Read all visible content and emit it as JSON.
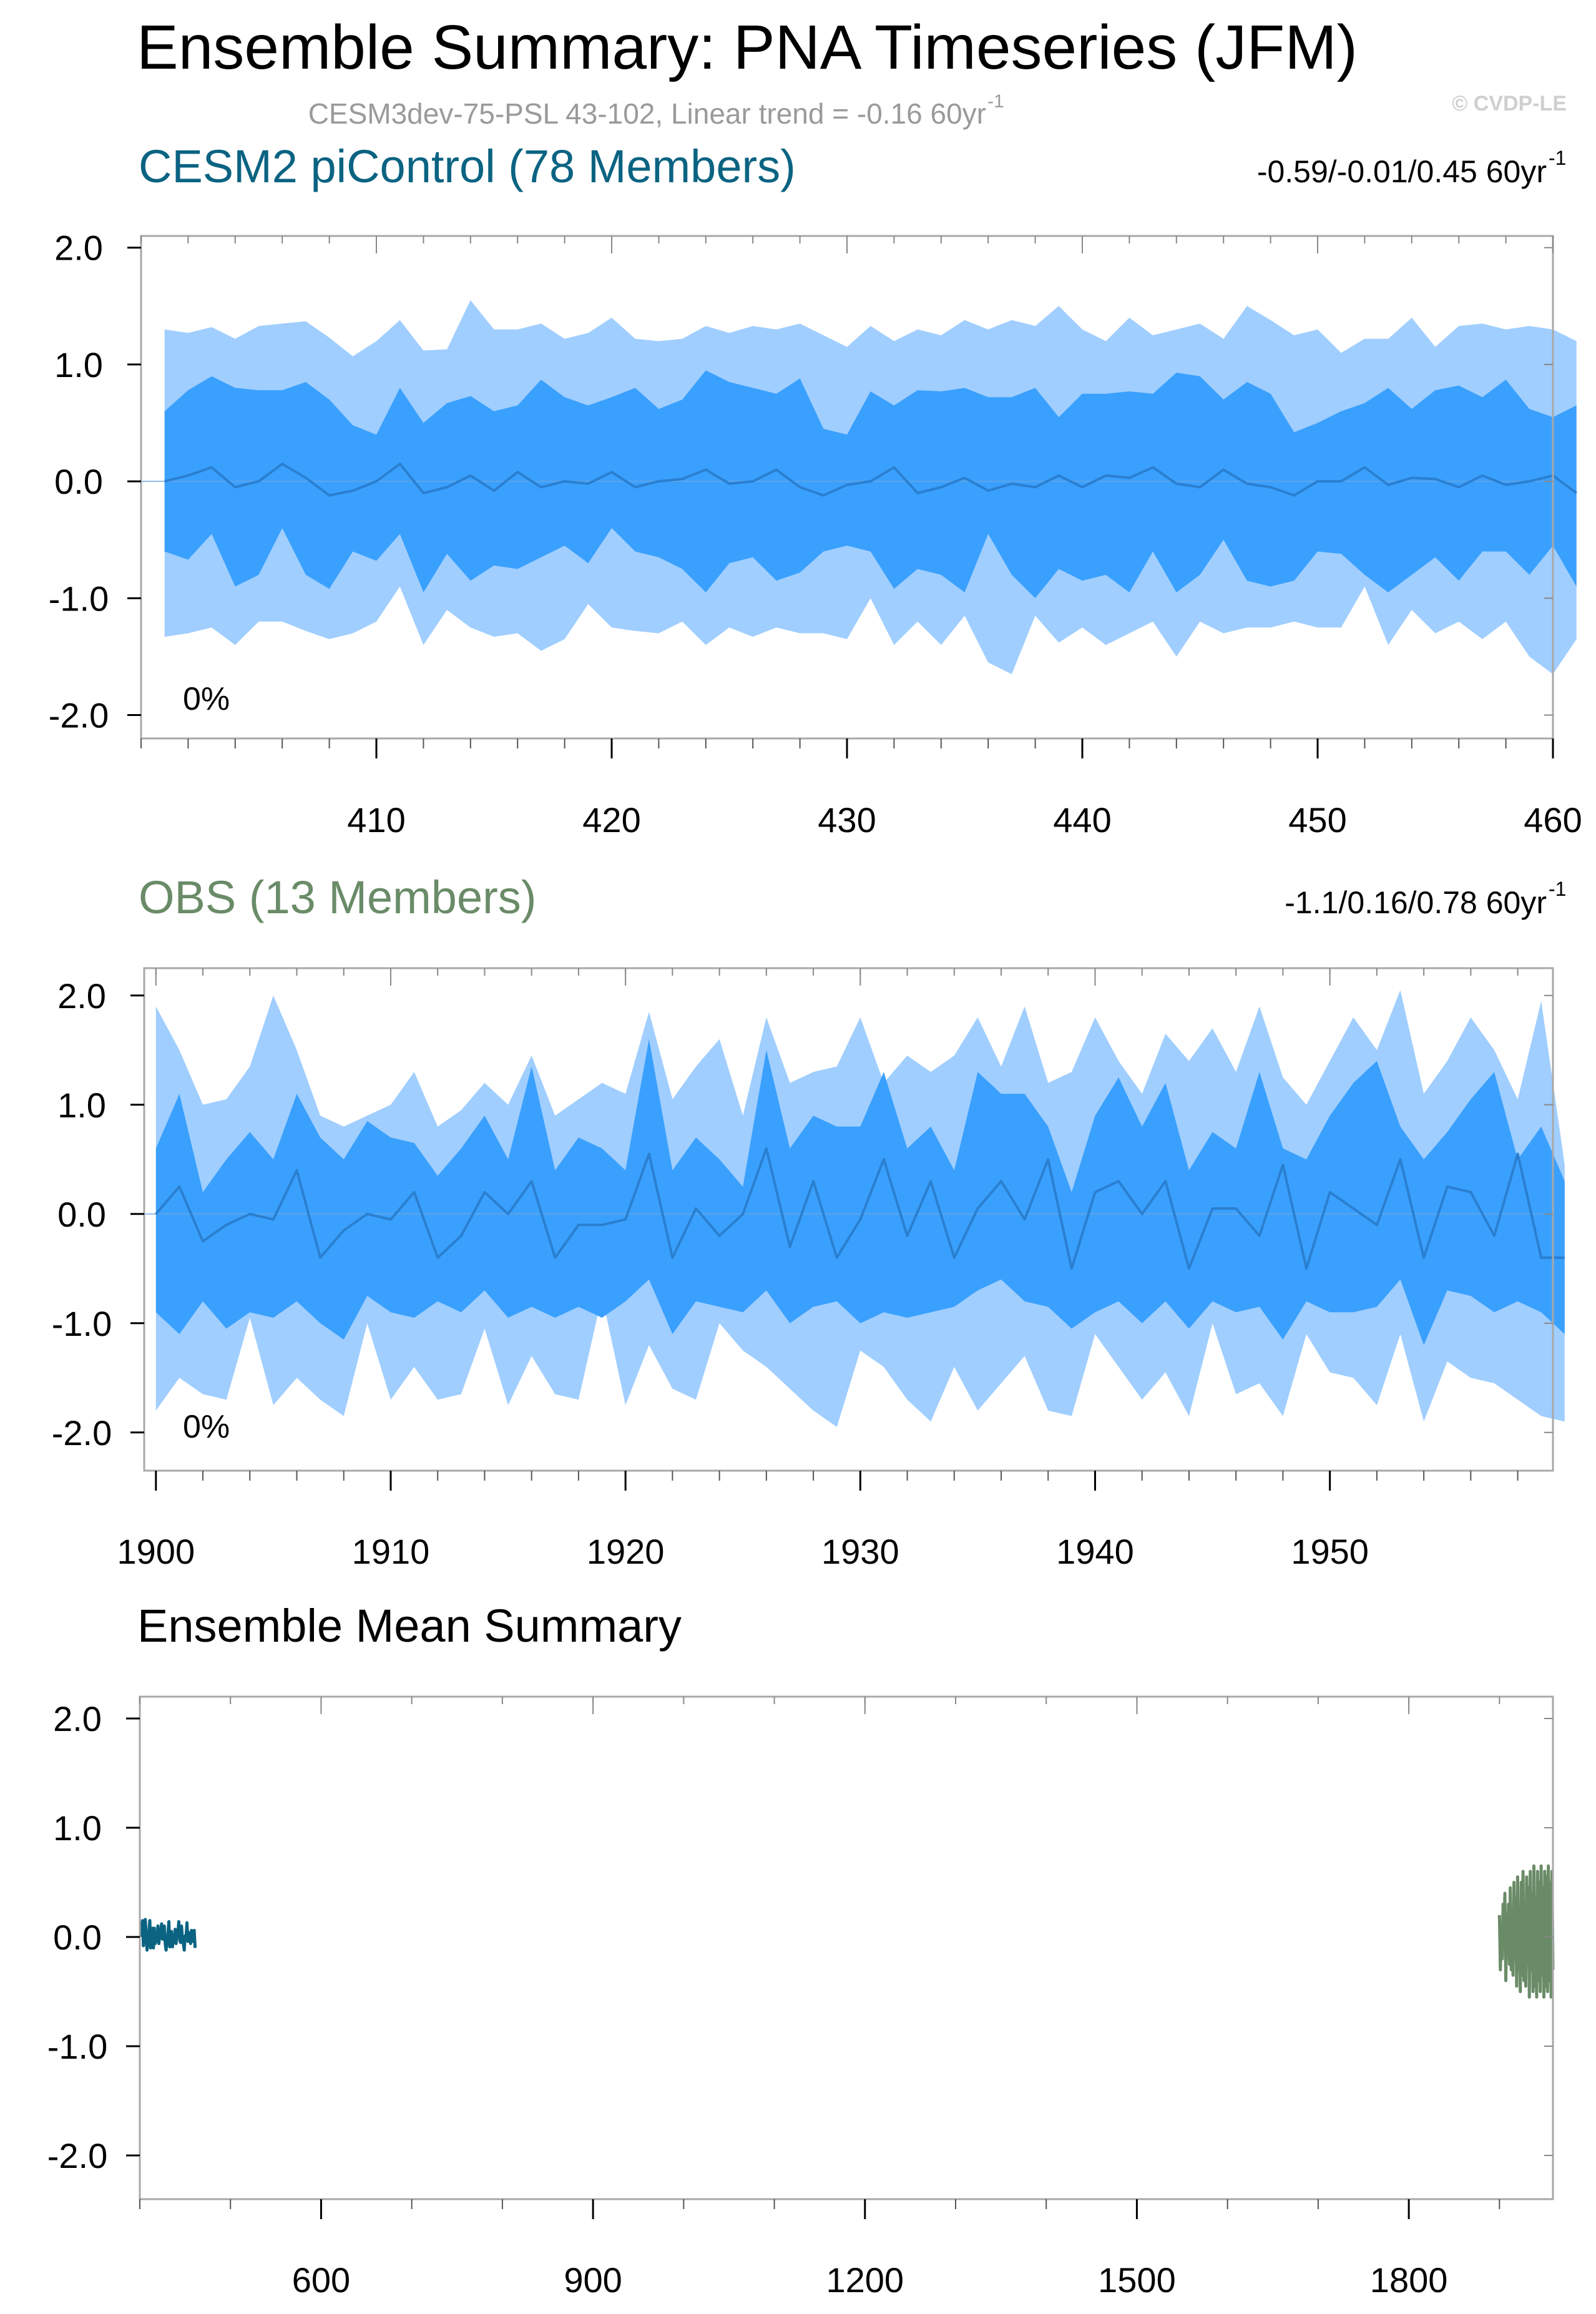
{
  "title": "Ensemble Summary: PNA Timeseries (JFM)",
  "subtitle": "CESM3dev-75-PSL 43-102, Linear trend = -0.16 60yr",
  "subtitle_sup": "-1",
  "copyright": "© CVDP-LE",
  "colors": {
    "band_outer": "#a0ceff",
    "band_inner": "#3aa0fd",
    "mean_line": "#2a7fd0",
    "cesm_title": "#0b6382",
    "obs_title": "#6a8b67",
    "frame": "#a8a8a8"
  },
  "chart_data": [
    {
      "type": "area",
      "title": "CESM2 piControl (78 Members)",
      "range_text": "-0.59/-0.01/0.45 60yr",
      "range_sup": "-1",
      "percent_label": "0%",
      "xlim": [
        400,
        460
      ],
      "ylim": [
        -2.2,
        2.1
      ],
      "x_start": 401,
      "x_ticks": [
        410,
        420,
        430,
        440,
        450,
        460
      ],
      "x_tick_labels": [
        "410",
        "420",
        "430",
        "440",
        "450",
        "460"
      ],
      "y_ticks": [
        2.0,
        1.0,
        0.0,
        -1.0,
        -2.0
      ],
      "y_tick_labels": [
        "2.0",
        "1.0",
        "0.0",
        "-1.0",
        "-2.0"
      ],
      "series": [
        {
          "role": "upper_outer",
          "values": [
            1.3,
            1.27,
            1.32,
            1.22,
            1.33,
            1.35,
            1.37,
            1.23,
            1.07,
            1.2,
            1.38,
            1.12,
            1.13,
            1.55,
            1.3,
            1.3,
            1.35,
            1.22,
            1.27,
            1.4,
            1.22,
            1.2,
            1.22,
            1.33,
            1.27,
            1.33,
            1.3,
            1.35,
            1.25,
            1.15,
            1.33,
            1.2,
            1.3,
            1.25,
            1.38,
            1.3,
            1.38,
            1.33,
            1.5,
            1.3,
            1.2,
            1.4,
            1.25,
            1.3,
            1.35,
            1.22,
            1.5,
            1.38,
            1.25,
            1.3,
            1.1,
            1.22,
            1.22,
            1.4,
            1.15,
            1.33,
            1.35,
            1.3,
            1.33,
            1.3,
            1.2
          ]
        },
        {
          "role": "upper_inner",
          "values": [
            0.6,
            0.78,
            0.9,
            0.8,
            0.78,
            0.78,
            0.85,
            0.7,
            0.48,
            0.4,
            0.8,
            0.5,
            0.67,
            0.73,
            0.6,
            0.65,
            0.87,
            0.72,
            0.65,
            0.72,
            0.8,
            0.62,
            0.7,
            0.95,
            0.85,
            0.8,
            0.75,
            0.88,
            0.45,
            0.4,
            0.77,
            0.65,
            0.78,
            0.77,
            0.8,
            0.72,
            0.72,
            0.8,
            0.55,
            0.75,
            0.75,
            0.77,
            0.75,
            0.93,
            0.9,
            0.7,
            0.85,
            0.75,
            0.42,
            0.5,
            0.6,
            0.67,
            0.8,
            0.62,
            0.78,
            0.82,
            0.72,
            0.87,
            0.62,
            0.55,
            0.65
          ]
        },
        {
          "role": "mean",
          "values": [
            0.0,
            0.05,
            0.12,
            -0.05,
            0.0,
            0.15,
            0.03,
            -0.12,
            -0.08,
            0.0,
            0.15,
            -0.1,
            -0.05,
            0.05,
            -0.08,
            0.08,
            -0.05,
            0.0,
            -0.02,
            0.08,
            -0.05,
            0.0,
            0.02,
            0.1,
            -0.02,
            0.0,
            0.1,
            -0.05,
            -0.12,
            -0.03,
            0.0,
            0.12,
            -0.1,
            -0.05,
            0.03,
            -0.08,
            -0.02,
            -0.05,
            0.05,
            -0.05,
            0.05,
            0.03,
            0.12,
            -0.02,
            -0.05,
            0.1,
            -0.02,
            -0.05,
            -0.12,
            0.0,
            0.0,
            0.12,
            -0.03,
            0.03,
            0.02,
            -0.05,
            0.05,
            -0.03,
            0.0,
            0.05,
            -0.1
          ]
        },
        {
          "role": "lower_inner",
          "values": [
            -0.6,
            -0.67,
            -0.45,
            -0.9,
            -0.8,
            -0.4,
            -0.8,
            -0.92,
            -0.6,
            -0.68,
            -0.45,
            -0.95,
            -0.62,
            -0.85,
            -0.72,
            -0.75,
            -0.65,
            -0.55,
            -0.7,
            -0.4,
            -0.6,
            -0.65,
            -0.75,
            -0.95,
            -0.7,
            -0.65,
            -0.85,
            -0.78,
            -0.6,
            -0.55,
            -0.6,
            -0.92,
            -0.75,
            -0.8,
            -0.95,
            -0.45,
            -0.8,
            -1.0,
            -0.75,
            -0.85,
            -0.8,
            -0.95,
            -0.6,
            -0.95,
            -0.8,
            -0.5,
            -0.85,
            -0.9,
            -0.85,
            -0.6,
            -0.62,
            -0.8,
            -0.95,
            -0.8,
            -0.65,
            -0.85,
            -0.6,
            -0.6,
            -0.8,
            -0.55,
            -0.9
          ]
        },
        {
          "role": "lower_outer",
          "values": [
            -1.33,
            -1.3,
            -1.25,
            -1.4,
            -1.2,
            -1.2,
            -1.28,
            -1.35,
            -1.3,
            -1.2,
            -0.9,
            -1.4,
            -1.1,
            -1.25,
            -1.33,
            -1.3,
            -1.45,
            -1.35,
            -1.05,
            -1.25,
            -1.28,
            -1.3,
            -1.2,
            -1.4,
            -1.25,
            -1.33,
            -1.25,
            -1.3,
            -1.3,
            -1.35,
            -1.0,
            -1.4,
            -1.2,
            -1.4,
            -1.15,
            -1.55,
            -1.65,
            -1.15,
            -1.38,
            -1.25,
            -1.4,
            -1.3,
            -1.2,
            -1.5,
            -1.2,
            -1.3,
            -1.25,
            -1.25,
            -1.2,
            -1.25,
            -1.25,
            -0.9,
            -1.4,
            -1.1,
            -1.3,
            -1.2,
            -1.35,
            -1.2,
            -1.5,
            -1.65,
            -1.35
          ]
        }
      ]
    },
    {
      "type": "area",
      "title": "OBS (13 Members)",
      "range_text": "-1.1/0.16/0.78 60yr",
      "range_sup": "-1",
      "percent_label": "0%",
      "xlim": [
        1899.5,
        1959.5
      ],
      "ylim": [
        -2.35,
        2.25
      ],
      "x_start": 1900,
      "x_ticks": [
        1900,
        1910,
        1920,
        1930,
        1940,
        1950
      ],
      "x_tick_labels": [
        "1900",
        "1910",
        "1920",
        "1930",
        "1940",
        "1950"
      ],
      "y_ticks": [
        2.0,
        1.0,
        0.0,
        -1.0,
        -2.0
      ],
      "y_tick_labels": [
        "2.0",
        "1.0",
        "0.0",
        "-1.0",
        "-2.0"
      ],
      "series": [
        {
          "role": "upper_outer",
          "values": [
            1.9,
            1.5,
            1.0,
            1.05,
            1.35,
            2.0,
            1.5,
            0.9,
            0.8,
            0.9,
            1.0,
            1.3,
            0.8,
            0.95,
            1.2,
            1.0,
            1.45,
            0.9,
            1.05,
            1.2,
            1.1,
            1.85,
            1.05,
            1.35,
            1.6,
            0.9,
            1.8,
            1.2,
            1.3,
            1.35,
            1.8,
            1.2,
            1.45,
            1.3,
            1.45,
            1.8,
            1.35,
            1.9,
            1.2,
            1.3,
            1.8,
            1.4,
            1.1,
            1.65,
            1.4,
            1.7,
            1.3,
            1.9,
            1.25,
            1.0,
            1.4,
            1.8,
            1.5,
            2.05,
            1.1,
            1.4,
            1.8,
            1.5,
            1.05,
            1.95,
            0.45
          ]
        },
        {
          "role": "upper_inner",
          "values": [
            0.6,
            1.1,
            0.2,
            0.5,
            0.75,
            0.5,
            1.1,
            0.7,
            0.5,
            0.85,
            0.7,
            0.65,
            0.35,
            0.6,
            0.9,
            0.5,
            1.35,
            0.4,
            0.7,
            0.6,
            0.4,
            1.6,
            0.4,
            0.7,
            0.5,
            0.25,
            1.5,
            0.6,
            0.9,
            0.8,
            0.8,
            1.3,
            0.6,
            0.8,
            0.4,
            1.3,
            1.1,
            1.1,
            0.8,
            0.2,
            0.9,
            1.25,
            0.8,
            1.2,
            0.4,
            0.75,
            0.6,
            1.3,
            0.6,
            0.5,
            0.9,
            1.2,
            1.4,
            0.8,
            0.5,
            0.75,
            1.05,
            1.3,
            0.5,
            0.8,
            0.3
          ]
        },
        {
          "role": "mean",
          "values": [
            0.0,
            0.25,
            -0.25,
            -0.1,
            0.0,
            -0.05,
            0.4,
            -0.4,
            -0.15,
            0.0,
            -0.05,
            0.2,
            -0.4,
            -0.2,
            0.2,
            0.0,
            0.3,
            -0.4,
            -0.1,
            -0.1,
            -0.05,
            0.55,
            -0.4,
            0.05,
            -0.2,
            0.0,
            0.6,
            -0.3,
            0.3,
            -0.4,
            -0.05,
            0.5,
            -0.2,
            0.3,
            -0.4,
            0.05,
            0.3,
            -0.05,
            0.5,
            -0.5,
            0.2,
            0.3,
            0.0,
            0.3,
            -0.5,
            0.05,
            0.05,
            -0.2,
            0.45,
            -0.5,
            0.2,
            0.05,
            -0.1,
            0.5,
            -0.4,
            0.25,
            0.2,
            -0.2,
            0.55,
            -0.4,
            -0.4
          ]
        },
        {
          "role": "lower_inner",
          "values": [
            -0.9,
            -1.1,
            -0.8,
            -1.05,
            -0.9,
            -0.95,
            -0.8,
            -1.0,
            -1.15,
            -0.75,
            -0.9,
            -0.95,
            -0.8,
            -0.9,
            -0.7,
            -0.95,
            -0.85,
            -0.95,
            -0.85,
            -0.95,
            -0.8,
            -0.6,
            -1.1,
            -0.8,
            -0.85,
            -0.9,
            -0.7,
            -1.0,
            -0.85,
            -0.8,
            -1.0,
            -0.9,
            -0.95,
            -0.9,
            -0.85,
            -0.7,
            -0.6,
            -0.8,
            -0.85,
            -1.05,
            -0.9,
            -0.8,
            -1.0,
            -0.8,
            -1.05,
            -0.8,
            -0.9,
            -0.85,
            -1.15,
            -0.8,
            -0.9,
            -0.9,
            -0.85,
            -0.6,
            -1.2,
            -0.7,
            -0.75,
            -0.9,
            -0.8,
            -0.9,
            -1.1
          ]
        },
        {
          "role": "lower_outer",
          "values": [
            -1.8,
            -1.5,
            -1.65,
            -1.7,
            -0.95,
            -1.75,
            -1.5,
            -1.7,
            -1.85,
            -1.0,
            -1.7,
            -1.4,
            -1.7,
            -1.65,
            -1.05,
            -1.75,
            -1.3,
            -1.65,
            -1.7,
            -0.75,
            -1.75,
            -1.2,
            -1.6,
            -1.7,
            -1.0,
            -1.25,
            -1.4,
            -1.6,
            -1.8,
            -1.95,
            -1.25,
            -1.4,
            -1.7,
            -1.9,
            -1.4,
            -1.8,
            -1.55,
            -1.3,
            -1.8,
            -1.85,
            -1.1,
            -1.4,
            -1.7,
            -1.45,
            -1.85,
            -1.0,
            -1.65,
            -1.55,
            -1.85,
            -1.1,
            -1.45,
            -1.5,
            -1.75,
            -1.1,
            -1.9,
            -1.35,
            -1.5,
            -1.55,
            -1.7,
            -1.85,
            -1.9
          ]
        }
      ]
    },
    {
      "type": "line",
      "title": "Ensemble Mean Summary",
      "xlim": [
        400,
        1959
      ],
      "ylim": [
        -2.4,
        2.2
      ],
      "x_ticks": [
        600,
        900,
        1200,
        1500,
        1800
      ],
      "x_tick_labels": [
        "600",
        "900",
        "1200",
        "1500",
        "1800"
      ],
      "y_ticks": [
        2.0,
        1.0,
        0.0,
        -1.0,
        -2.0
      ],
      "y_tick_labels": [
        "2.0",
        "1.0",
        "0.0",
        "-1.0",
        "-2.0"
      ],
      "series": [
        {
          "color": "#0b6382",
          "x_start": 401,
          "values": [
            0.0,
            0.08,
            0.15,
            -0.08,
            0.05,
            0.16,
            0.03,
            -0.12,
            -0.05,
            0.02,
            0.15,
            -0.1,
            -0.05,
            0.08,
            -0.1,
            0.08,
            -0.06,
            0.02,
            -0.04,
            0.1,
            -0.06,
            0.02,
            0.03,
            0.12,
            -0.02,
            0.01,
            0.1,
            -0.06,
            -0.12,
            -0.02,
            0.02,
            0.14,
            -0.09,
            -0.04,
            0.05,
            -0.09,
            -0.02,
            -0.05,
            0.07,
            -0.06,
            0.06,
            0.03,
            0.14,
            -0.03,
            -0.05,
            0.1,
            -0.02,
            -0.06,
            -0.12,
            0.01,
            0.0,
            0.13,
            -0.04,
            0.04,
            0.02,
            -0.06,
            0.06,
            -0.04,
            0.01,
            0.06,
            -0.1
          ]
        },
        {
          "color": "#6a8b67",
          "x_start": 1900,
          "values": [
            0.2,
            -0.3,
            0.1,
            -0.2,
            0.3,
            -0.1,
            0.4,
            -0.4,
            0.2,
            -0.15,
            0.3,
            -0.25,
            0.45,
            -0.3,
            0.2,
            -0.35,
            0.5,
            -0.2,
            0.35,
            -0.45,
            0.55,
            -0.3,
            0.25,
            -0.5,
            0.5,
            -0.35,
            0.6,
            -0.4,
            0.3,
            -0.45,
            0.55,
            -0.25,
            0.45,
            -0.55,
            0.6,
            -0.3,
            0.4,
            -0.5,
            0.65,
            -0.45,
            0.35,
            -0.55,
            0.6,
            -0.4,
            0.5,
            -0.5,
            0.65,
            -0.35,
            0.45,
            -0.55,
            0.6,
            -0.45,
            0.55,
            -0.5,
            0.65,
            -0.4,
            0.5,
            -0.55,
            0.6,
            -0.3
          ]
        }
      ]
    }
  ]
}
